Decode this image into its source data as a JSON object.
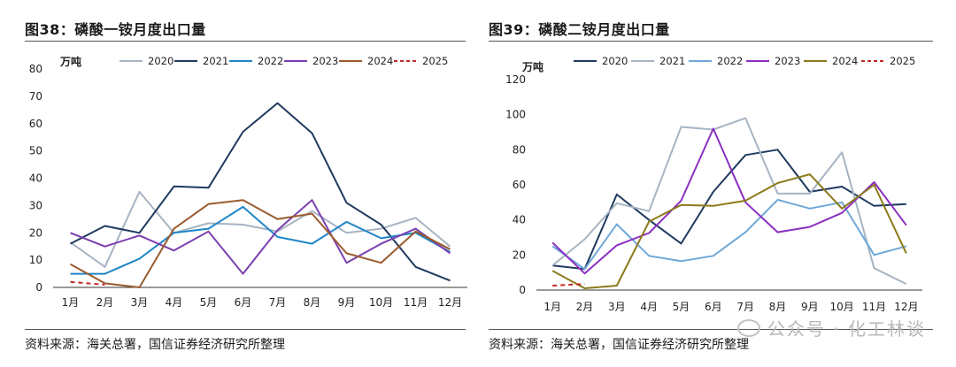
{
  "figures": [
    {
      "title": "图38：磷酸一铵月度出口量",
      "source": "资料来源：海关总署，国信证券经济研究所整理"
    },
    {
      "title": "图39：磷酸二铵月度出口量",
      "source": "资料来源：海关总署，国信证券经济研究所整理"
    }
  ],
  "watermark": "公众号 · 化工林谈",
  "chart_data": [
    {
      "type": "line",
      "unit": "万吨",
      "categories": [
        "1月",
        "2月",
        "3月",
        "4月",
        "5月",
        "6月",
        "7月",
        "8月",
        "9月",
        "10月",
        "11月",
        "12月"
      ],
      "ylim": [
        0,
        80
      ],
      "yticks": [
        0,
        10,
        20,
        30,
        40,
        50,
        60,
        70,
        80
      ],
      "legend_position": "top",
      "series": [
        {
          "name": "2020",
          "color": "#a7b4c2",
          "dash": false,
          "values": [
            16.5,
            7.5,
            35,
            20,
            23.5,
            23,
            20.5,
            28,
            20,
            21.5,
            25.5,
            15
          ]
        },
        {
          "name": "2021",
          "color": "#1f3a5f",
          "dash": false,
          "values": [
            16,
            22.5,
            20,
            37,
            36.5,
            57,
            67.5,
            56.5,
            31,
            23,
            7.5,
            2.5
          ]
        },
        {
          "name": "2022",
          "color": "#1f86c8",
          "dash": false,
          "values": [
            5,
            5,
            10.5,
            20,
            21.5,
            29.5,
            18.5,
            16,
            24,
            18,
            20,
            13
          ]
        },
        {
          "name": "2023",
          "color": "#7b3fb0",
          "dash": false,
          "values": [
            20,
            15,
            19,
            13.5,
            20.5,
            5,
            21,
            32,
            9,
            16,
            21.5,
            12.5
          ]
        },
        {
          "name": "2024",
          "color": "#9a5b2e",
          "dash": false,
          "values": [
            8.5,
            1.5,
            0,
            21.5,
            30.5,
            32,
            25,
            27,
            12.5,
            9,
            20.5,
            14
          ]
        },
        {
          "name": "2025",
          "color": "#c0282a",
          "dash": true,
          "values": [
            2,
            1,
            null,
            null,
            null,
            null,
            null,
            null,
            null,
            null,
            null,
            null
          ]
        }
      ]
    },
    {
      "type": "line",
      "unit": "万吨",
      "categories": [
        "1月",
        "2月",
        "3月",
        "4月",
        "5月",
        "6月",
        "7月",
        "8月",
        "9月",
        "10月",
        "11月",
        "12月"
      ],
      "ylim": [
        0,
        120
      ],
      "yticks": [
        0,
        20,
        40,
        60,
        80,
        100,
        120
      ],
      "legend_position": "top",
      "series": [
        {
          "name": "2020",
          "color": "#1f3a5f",
          "dash": false,
          "values": [
            14,
            12,
            54.5,
            40,
            26.5,
            56,
            77,
            80,
            56,
            59,
            48,
            49
          ]
        },
        {
          "name": "2021",
          "color": "#a7b4c2",
          "dash": false,
          "values": [
            14,
            29,
            49.5,
            45,
            93,
            91.5,
            98,
            55,
            55,
            78.5,
            12.5,
            3.5
          ]
        },
        {
          "name": "2022",
          "color": "#6fa8d8",
          "dash": false,
          "values": [
            25,
            12,
            37.5,
            19.5,
            16.5,
            19.5,
            33,
            51.5,
            46.5,
            50,
            20,
            25
          ]
        },
        {
          "name": "2023",
          "color": "#8a2fc0",
          "dash": false,
          "values": [
            27,
            9.5,
            25.5,
            32.5,
            51,
            92,
            50,
            33,
            36,
            44,
            61.5,
            37
          ]
        },
        {
          "name": "2024",
          "color": "#8c7a1a",
          "dash": false,
          "values": [
            11,
            1,
            2.5,
            39,
            48.5,
            48,
            51,
            61,
            66,
            46.5,
            60,
            21
          ]
        },
        {
          "name": "2025",
          "color": "#c0282a",
          "dash": true,
          "values": [
            2.5,
            3.5,
            null,
            null,
            null,
            null,
            null,
            null,
            null,
            null,
            null,
            null
          ]
        }
      ]
    }
  ]
}
